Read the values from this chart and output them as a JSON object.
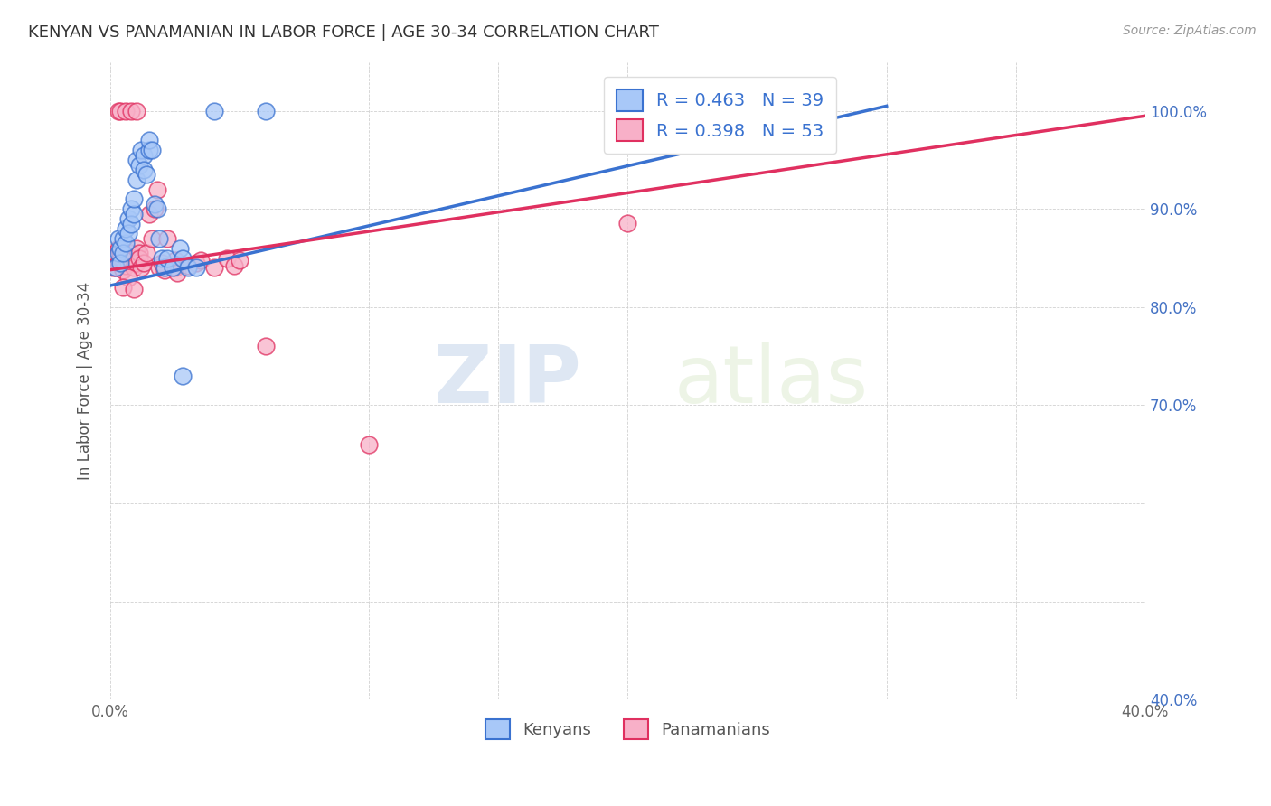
{
  "title": "KENYAN VS PANAMANIAN IN LABOR FORCE | AGE 30-34 CORRELATION CHART",
  "source": "Source: ZipAtlas.com",
  "ylabel": "In Labor Force | Age 30-34",
  "xlim": [
    0.0,
    0.4
  ],
  "ylim": [
    0.4,
    1.05
  ],
  "x_tick_positions": [
    0.0,
    0.05,
    0.1,
    0.15,
    0.2,
    0.25,
    0.3,
    0.35,
    0.4
  ],
  "x_tick_labels": [
    "0.0%",
    "",
    "",
    "",
    "",
    "",
    "",
    "",
    "40.0%"
  ],
  "y_tick_positions": [
    0.4,
    0.5,
    0.6,
    0.7,
    0.8,
    0.9,
    1.0
  ],
  "y_tick_labels_right": [
    "40.0%",
    "",
    "",
    "70.0%",
    "80.0%",
    "90.0%",
    "100.0%"
  ],
  "legend_R_kenyan": "R = 0.463",
  "legend_N_kenyan": "N = 39",
  "legend_R_panamanian": "R = 0.398",
  "legend_N_panamanian": "N = 53",
  "kenyan_color": "#a8c8f8",
  "panamanian_color": "#f8b0c8",
  "kenyan_line_color": "#3a72d0",
  "panamanian_line_color": "#e03060",
  "watermark_zip": "ZIP",
  "watermark_atlas": "atlas",
  "kenyan_trend_x0": 0.0,
  "kenyan_trend_y0": 0.822,
  "kenyan_trend_x1": 0.3,
  "kenyan_trend_y1": 1.005,
  "panamanian_trend_x0": 0.0,
  "panamanian_trend_y0": 0.838,
  "panamanian_trend_x1": 0.4,
  "panamanian_trend_y1": 0.995,
  "kenyan_x": [
    0.002,
    0.003,
    0.003,
    0.004,
    0.004,
    0.005,
    0.005,
    0.006,
    0.006,
    0.007,
    0.007,
    0.008,
    0.008,
    0.009,
    0.009,
    0.01,
    0.01,
    0.011,
    0.012,
    0.013,
    0.013,
    0.014,
    0.015,
    0.015,
    0.016,
    0.017,
    0.018,
    0.019,
    0.02,
    0.021,
    0.022,
    0.024,
    0.027,
    0.028,
    0.03,
    0.033,
    0.04,
    0.06,
    0.028
  ],
  "kenyan_y": [
    0.84,
    0.855,
    0.87,
    0.86,
    0.845,
    0.87,
    0.855,
    0.865,
    0.88,
    0.89,
    0.875,
    0.9,
    0.885,
    0.895,
    0.91,
    0.93,
    0.95,
    0.945,
    0.96,
    0.955,
    0.94,
    0.935,
    0.96,
    0.97,
    0.96,
    0.905,
    0.9,
    0.87,
    0.85,
    0.84,
    0.85,
    0.84,
    0.86,
    0.85,
    0.84,
    0.84,
    1.0,
    1.0,
    0.73
  ],
  "panamanian_x": [
    0.001,
    0.002,
    0.002,
    0.003,
    0.003,
    0.004,
    0.004,
    0.005,
    0.005,
    0.006,
    0.006,
    0.007,
    0.007,
    0.008,
    0.008,
    0.009,
    0.009,
    0.01,
    0.01,
    0.011,
    0.011,
    0.012,
    0.013,
    0.014,
    0.015,
    0.016,
    0.017,
    0.018,
    0.019,
    0.02,
    0.021,
    0.022,
    0.025,
    0.025,
    0.026,
    0.03,
    0.033,
    0.035,
    0.04,
    0.045,
    0.048,
    0.05,
    0.06,
    0.007,
    0.005,
    0.009,
    0.003,
    0.004,
    0.006,
    0.008,
    0.01,
    0.2,
    0.1
  ],
  "panamanian_y": [
    0.84,
    0.855,
    0.84,
    0.86,
    0.845,
    0.85,
    0.855,
    0.848,
    0.838,
    0.852,
    0.842,
    0.855,
    0.845,
    0.855,
    0.848,
    0.85,
    0.84,
    0.86,
    0.845,
    0.855,
    0.85,
    0.84,
    0.845,
    0.855,
    0.895,
    0.87,
    0.9,
    0.92,
    0.84,
    0.845,
    0.838,
    0.87,
    0.848,
    0.84,
    0.835,
    0.842,
    0.845,
    0.848,
    0.84,
    0.85,
    0.842,
    0.848,
    0.76,
    0.83,
    0.82,
    0.818,
    1.0,
    1.0,
    1.0,
    1.0,
    1.0,
    0.886,
    0.66
  ]
}
